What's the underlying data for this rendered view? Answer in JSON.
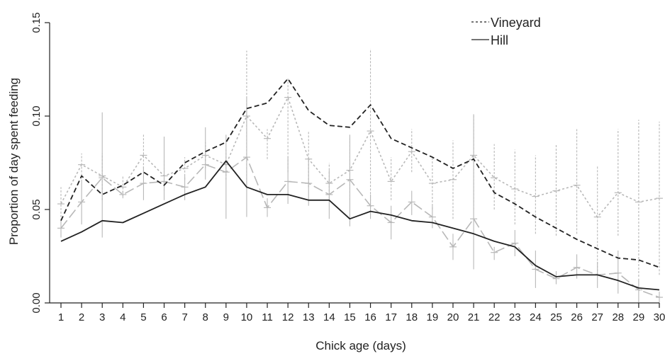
{
  "chart_data": {
    "type": "line",
    "title": "",
    "xlabel": "Chick age (days)",
    "ylabel": "Proportion of day spent feeding",
    "xlim": [
      1,
      30
    ],
    "ylim": [
      0,
      0.15
    ],
    "x": [
      1,
      2,
      3,
      4,
      5,
      6,
      7,
      8,
      9,
      10,
      11,
      12,
      13,
      14,
      15,
      16,
      17,
      18,
      19,
      20,
      21,
      22,
      23,
      24,
      25,
      26,
      27,
      28,
      29,
      30
    ],
    "y_ticks": [
      "0.00",
      "0.05",
      "0.10",
      "0.15"
    ],
    "grid": false,
    "legend_position": "top-right",
    "series": [
      {
        "name": "Vineyard",
        "style": "dashed",
        "color": "#222222",
        "values": [
          0.044,
          0.068,
          0.058,
          0.063,
          0.07,
          0.063,
          0.075,
          0.081,
          0.086,
          0.104,
          0.107,
          0.12,
          0.103,
          0.095,
          0.094,
          0.106,
          0.088,
          0.083,
          0.078,
          0.072,
          0.077,
          0.059,
          0.053,
          0.046,
          0.04,
          0.034,
          0.029,
          0.024,
          0.023,
          0.019
        ]
      },
      {
        "name": "Hill",
        "style": "solid",
        "color": "#222222",
        "values": [
          0.033,
          0.038,
          0.044,
          0.043,
          0.048,
          0.053,
          0.058,
          0.062,
          0.076,
          0.062,
          0.058,
          0.058,
          0.055,
          0.055,
          0.045,
          0.049,
          0.047,
          0.044,
          0.043,
          0.04,
          0.037,
          0.033,
          0.03,
          0.02,
          0.014,
          0.015,
          0.015,
          0.012,
          0.008,
          0.007
        ]
      }
    ],
    "background_series": [
      {
        "style": "grey-dashed",
        "color": "#b8b8b8",
        "values": [
          0.053,
          0.074,
          0.068,
          0.062,
          0.079,
          0.068,
          0.072,
          0.079,
          0.074,
          0.1,
          0.088,
          0.11,
          0.077,
          0.064,
          0.071,
          0.092,
          0.065,
          0.081,
          0.064,
          0.066,
          0.079,
          0.067,
          0.061,
          0.057,
          0.06,
          0.063,
          0.046,
          0.059,
          0.054,
          0.056
        ],
        "error_low": [
          0.044,
          0.068,
          0.055,
          0.057,
          0.07,
          0.06,
          0.066,
          0.072,
          0.066,
          0.064,
          0.077,
          0.07,
          0.062,
          0.054,
          0.055,
          0.045,
          0.055,
          0.07,
          0.05,
          0.045,
          0.05,
          0.05,
          0.042,
          0.037,
          0.036,
          0.037,
          0.015,
          0.036,
          0.014,
          0.015
        ],
        "error_high": [
          0.062,
          0.08,
          0.08,
          0.068,
          0.09,
          0.076,
          0.078,
          0.086,
          0.082,
          0.135,
          0.093,
          0.12,
          0.092,
          0.075,
          0.088,
          0.136,
          0.078,
          0.093,
          0.078,
          0.087,
          0.101,
          0.085,
          0.082,
          0.079,
          0.085,
          0.093,
          0.073,
          0.093,
          0.098,
          0.097
        ]
      },
      {
        "style": "grey-longdash",
        "color": "#b8b8b8",
        "values": [
          0.04,
          0.054,
          0.067,
          0.058,
          0.064,
          0.065,
          0.062,
          0.074,
          0.07,
          0.078,
          0.051,
          0.065,
          0.064,
          0.058,
          0.066,
          0.052,
          0.043,
          0.054,
          0.046,
          0.03,
          0.045,
          0.027,
          0.032,
          0.018,
          0.013,
          0.019,
          0.015,
          0.016,
          0.007,
          0.003
        ],
        "error_low": [
          0.035,
          0.042,
          0.035,
          0.056,
          0.055,
          0.055,
          0.055,
          0.066,
          0.045,
          0.046,
          0.046,
          0.053,
          0.052,
          0.045,
          0.041,
          0.046,
          0.034,
          0.047,
          0.04,
          0.023,
          0.018,
          0.023,
          0.025,
          0.008,
          0.01,
          0.013,
          0.008,
          0.005,
          0.0,
          0.0
        ],
        "error_high": [
          0.045,
          0.066,
          0.102,
          0.06,
          0.073,
          0.089,
          0.068,
          0.094,
          0.09,
          0.11,
          0.056,
          0.078,
          0.077,
          0.071,
          0.09,
          0.058,
          0.052,
          0.06,
          0.052,
          0.037,
          0.101,
          0.03,
          0.039,
          0.028,
          0.017,
          0.026,
          0.022,
          0.028,
          0.013,
          0.006
        ]
      }
    ]
  }
}
